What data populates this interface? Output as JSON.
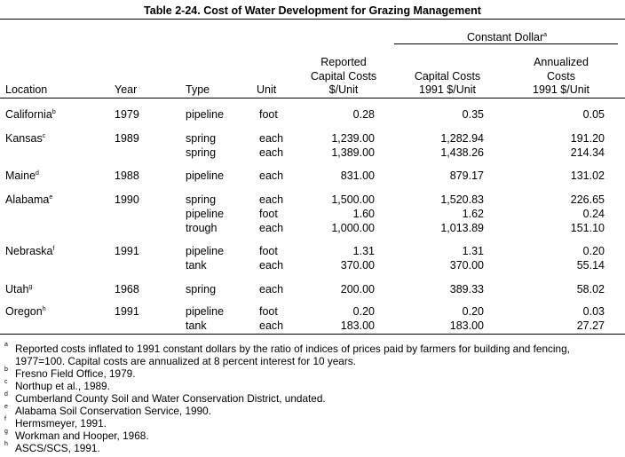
{
  "table": {
    "title": "Table 2-24.  Cost of Water Development for Grazing Management",
    "constant_dollar_header": "Constant Dollar",
    "constant_dollar_note": "a",
    "columns": {
      "location": "Location",
      "year": "Year",
      "type": "Type",
      "unit": "Unit",
      "reported_1": "Reported",
      "reported_2": "Capital Costs",
      "reported_3": "$/Unit",
      "capital_1": "Capital Costs",
      "capital_2": "1991 $/Unit",
      "annual_1": "Annualized",
      "annual_2": "Costs",
      "annual_3": "1991 $/Unit"
    },
    "rows": [
      {
        "location": "California",
        "note": "b",
        "year": "1979",
        "type": "pipeline",
        "unit": "foot",
        "reported": "0.28",
        "capital": "0.35",
        "annualized": "0.05"
      },
      {
        "location": "Kansas",
        "note": "c",
        "year": "1989",
        "type": "spring",
        "unit": "each",
        "reported": "1,239.00",
        "capital": "1,282.94",
        "annualized": "191.20"
      },
      {
        "location": "",
        "note": "",
        "year": "",
        "type": "spring",
        "unit": "each",
        "reported": "1,389.00",
        "capital": "1,438.26",
        "annualized": "214.34"
      },
      {
        "location": "Maine",
        "note": "d",
        "year": "1988",
        "type": "pipeline",
        "unit": "each",
        "reported": "831.00",
        "capital": "879.17",
        "annualized": "131.02"
      },
      {
        "location": "Alabama",
        "note": "e",
        "year": "1990",
        "type": "spring",
        "unit": "each",
        "reported": "1,500.00",
        "capital": "1,520.83",
        "annualized": "226.65"
      },
      {
        "location": "",
        "note": "",
        "year": "",
        "type": "pipeline",
        "unit": "foot",
        "reported": "1.60",
        "capital": "1.62",
        "annualized": "0.24"
      },
      {
        "location": "",
        "note": "",
        "year": "",
        "type": "trough",
        "unit": "each",
        "reported": "1,000.00",
        "capital": "1,013.89",
        "annualized": "151.10"
      },
      {
        "location": "Nebraska",
        "note": "f",
        "year": "1991",
        "type": "pipeline",
        "unit": "foot",
        "reported": "1.31",
        "capital": "1.31",
        "annualized": "0.20"
      },
      {
        "location": "",
        "note": "",
        "year": "",
        "type": "tank",
        "unit": "each",
        "reported": "370.00",
        "capital": "370.00",
        "annualized": "55.14"
      },
      {
        "location": "Utah",
        "note": "g",
        "year": "1968",
        "type": "spring",
        "unit": "each",
        "reported": "200.00",
        "capital": "389.33",
        "annualized": "58.02"
      },
      {
        "location": "Oregon",
        "note": "h",
        "year": "1991",
        "type": "pipeline",
        "unit": "foot",
        "reported": "0.20",
        "capital": "0.20",
        "annualized": "0.03"
      },
      {
        "location": "",
        "note": "",
        "year": "",
        "type": "tank",
        "unit": "each",
        "reported": "183.00",
        "capital": "183.00",
        "annualized": "27.27"
      }
    ]
  },
  "footnotes": [
    {
      "mark": "a",
      "lines": [
        "Reported costs inflated to 1991 constant dollars by the ratio of indices of prices paid by farmers for building and fencing,",
        "1977=100.  Capital costs are annualized at 8 percent interest for 10 years."
      ]
    },
    {
      "mark": "b",
      "lines": [
        "Fresno Field Office, 1979."
      ]
    },
    {
      "mark": "c",
      "lines": [
        "Northup et al., 1989."
      ]
    },
    {
      "mark": "d",
      "lines": [
        "Cumberland County Soil and Water Conservation District, undated."
      ]
    },
    {
      "mark": "e",
      "lines": [
        "Alabama Soil Conservation Service, 1990."
      ]
    },
    {
      "mark": "f",
      "lines": [
        "Hermsmeyer, 1991."
      ]
    },
    {
      "mark": "g",
      "lines": [
        "Workman and Hooper, 1968."
      ]
    },
    {
      "mark": "h",
      "lines": [
        "ASCS/SCS, 1991."
      ]
    }
  ]
}
